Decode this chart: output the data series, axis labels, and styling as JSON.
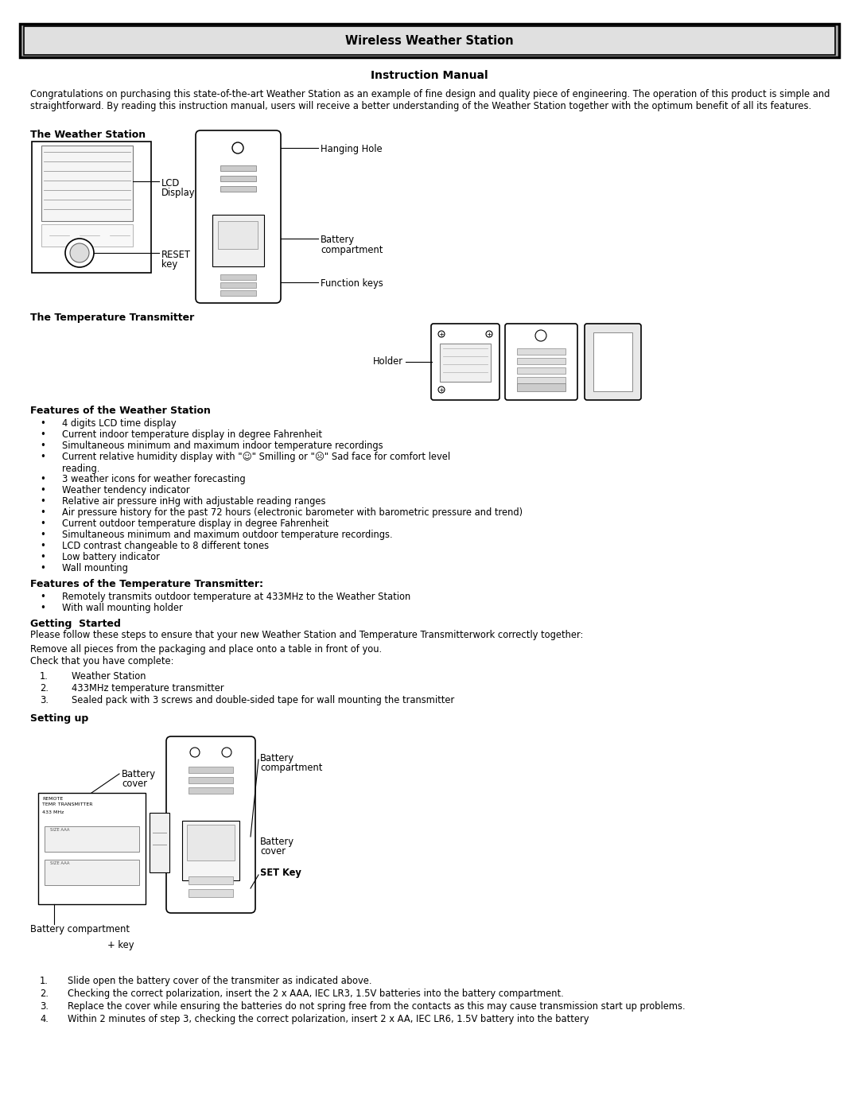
{
  "title_box": "Wireless Weather Station",
  "subtitle": "Instruction Manual",
  "intro_text": "Congratulations on purchasing this state-of-the-art Weather Station as an example of fine design and quality piece of engineering. The operation of this product is simple and\nstraightforward. By reading this instruction manual, users will receive a better understanding of the Weather Station together with the optimum benefit of all its features.",
  "section1_title": "The Weather Station",
  "section2_title": "The Temperature Transmitter",
  "section3_title": "Features of the Weather Station",
  "section4_title": "Features of the Temperature Transmitter:",
  "section5_title": "Getting  Started",
  "section6_title": "Setting up",
  "features_weather": [
    "4 digits LCD time display",
    "Current indoor temperature display in degree Fahrenheit",
    "Simultaneous minimum and maximum indoor temperature recordings",
    "Current relative humidity display with \"☺\" Smilling or \"☹\" Sad face for comfort level\nreading.",
    "3 weather icons for weather forecasting",
    "Weather tendency indicator",
    "Relative air pressure inHg with adjustable reading ranges",
    "Air pressure history for the past 72 hours (electronic barometer with barometric pressure and trend)",
    "Current outdoor temperature display in degree Fahrenheit",
    "Simultaneous minimum and maximum outdoor temperature recordings.",
    "LCD contrast changeable to 8 different tones",
    "Low battery indicator",
    "Wall mounting"
  ],
  "features_transmitter": [
    "Remotely transmits outdoor temperature at 433MHz to the Weather Station",
    "With wall mounting holder"
  ],
  "getting_started_text1": "Please follow these steps to ensure that your new Weather Station and Temperature Transmitterwork correctly together:",
  "getting_started_text2": "Remove all pieces from the packaging and place onto a table in front of you.\nCheck that you have complete:",
  "numbered_items": [
    "Weather Station",
    "433MHz temperature transmitter",
    "Sealed pack with 3 screws and double-sided tape for wall mounting the transmitter"
  ],
  "bottom_instructions": [
    "Slide open the battery cover of the transmiter as indicated above.",
    "Checking the correct polarization, insert the 2 x AAA, IEC LR3, 1.5V batteries into the battery compartment.",
    "Replace the cover while ensuring the batteries do not spring free from the contacts as this may cause transmission start up problems.",
    "Within 2 minutes of step 3, checking the correct polarization, insert 2 x AA, IEC LR6, 1.5V battery into the battery"
  ],
  "bg_color": "#ffffff",
  "text_color": "#000000"
}
